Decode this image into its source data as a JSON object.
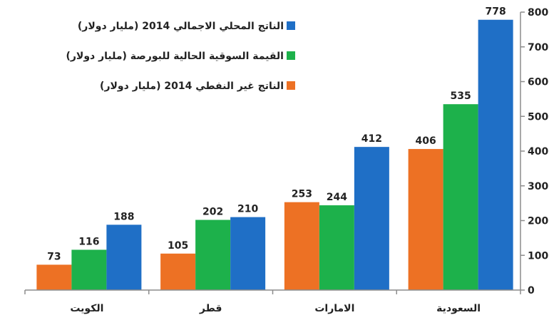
{
  "chart_data": {
    "type": "bar",
    "categories": [
      "الكويت",
      "قطر",
      "الامارات",
      "السعودية"
    ],
    "series": [
      {
        "name": "الناتج غير النفطي 2014 (مليار دولار)",
        "color": "#ED7124",
        "values": [
          73,
          105,
          253,
          406
        ]
      },
      {
        "name": "القيمة السوقية الحالية للبورصة (مليار دولار)",
        "color": "#1DB14B",
        "values": [
          116,
          202,
          244,
          535
        ]
      },
      {
        "name": "الناتج المحلي الاجمالي 2014 (مليار دولار)",
        "color": "#1F6FC6",
        "values": [
          188,
          210,
          412,
          778
        ]
      }
    ],
    "ylim": [
      0,
      800
    ],
    "yticks": [
      0,
      100,
      200,
      300,
      400,
      500,
      600,
      700,
      800
    ],
    "y_axis_side": "right",
    "legend_position": "top-left",
    "legend_order": [
      2,
      1,
      0
    ],
    "grid": false,
    "title": "",
    "xlabel": "",
    "ylabel": ""
  }
}
